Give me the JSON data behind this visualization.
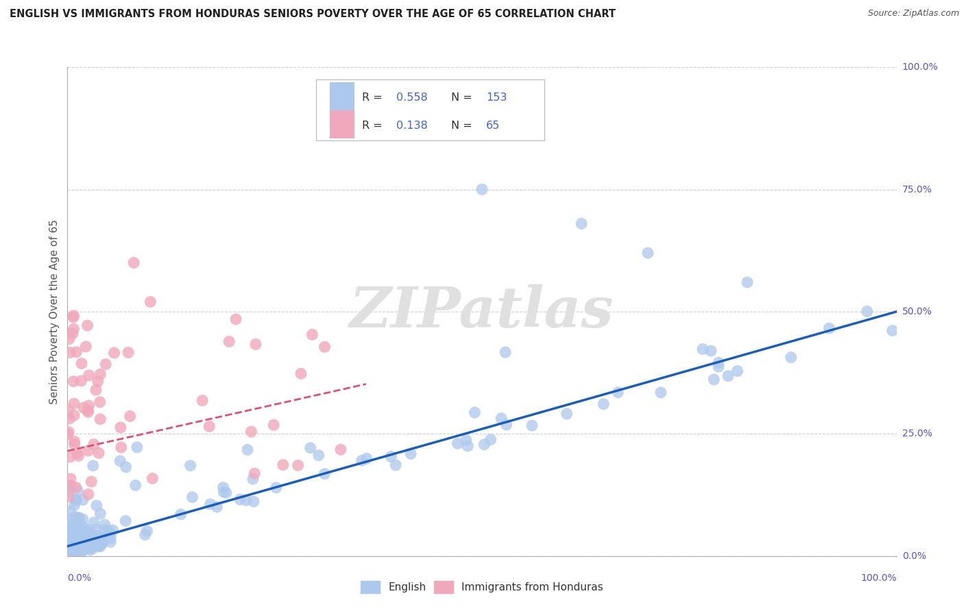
{
  "title": "ENGLISH VS IMMIGRANTS FROM HONDURAS SENIORS POVERTY OVER THE AGE OF 65 CORRELATION CHART",
  "source_text": "Source: ZipAtlas.com",
  "ylabel": "Seniors Poverty Over the Age of 65",
  "watermark": "ZIPatlas",
  "legend_english_r": "0.558",
  "legend_english_n": "153",
  "legend_honduras_r": "0.138",
  "legend_honduras_n": "65",
  "english_color": "#adc8ed",
  "honduras_color": "#f0a8bc",
  "english_line_color": "#1a5eb8",
  "honduras_line_color": "#d9527a",
  "background_color": "#ffffff",
  "grid_color": "#d0d0d0",
  "axis_label_color": "#5555cc",
  "title_color": "#222222",
  "source_color": "#555555",
  "ylabel_color": "#555555",
  "legend_text_color": "#333333",
  "legend_value_color": "#4466cc",
  "watermark_color": "#e0e0e0"
}
